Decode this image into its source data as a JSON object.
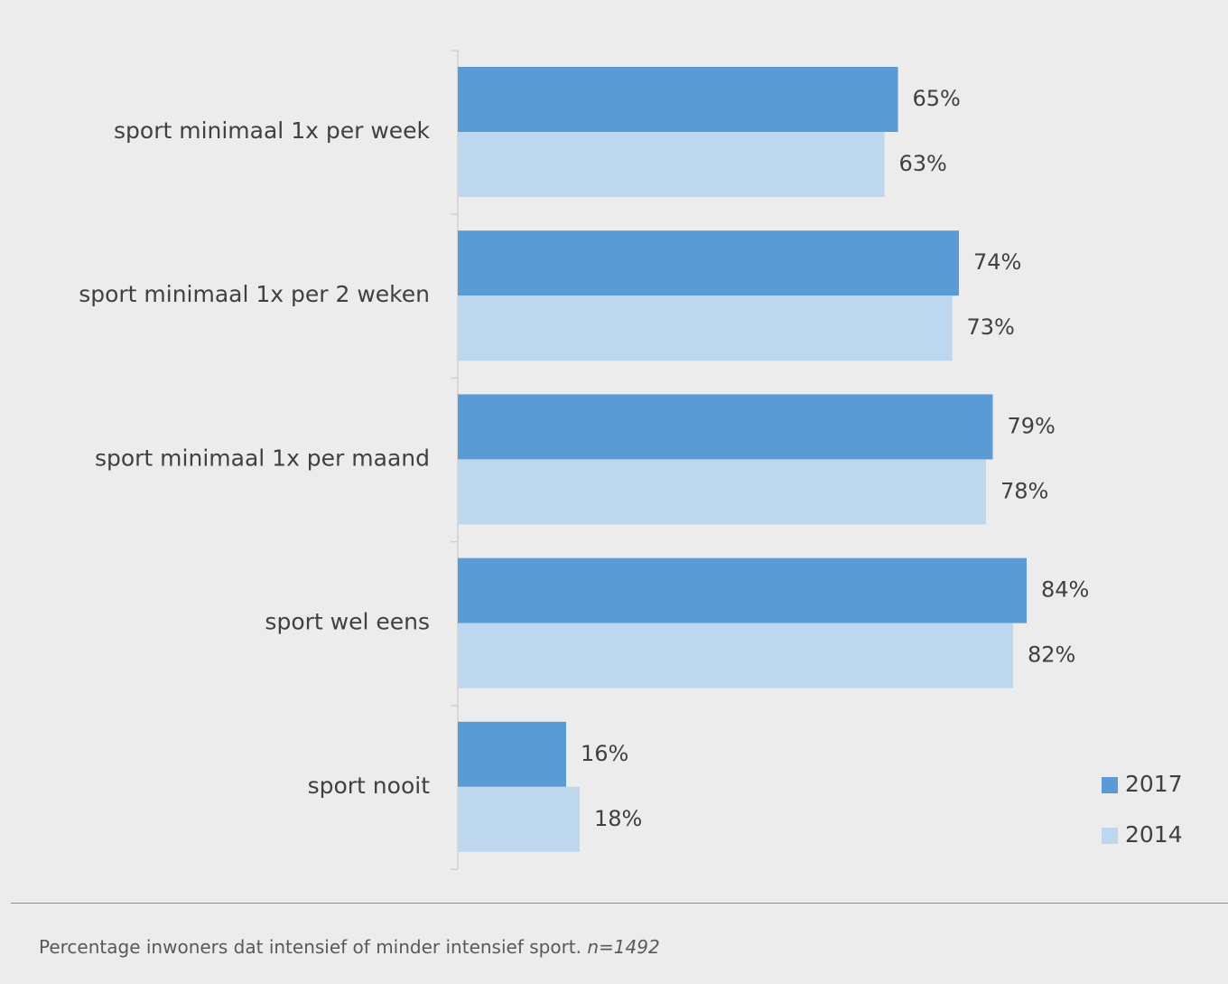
{
  "chart_data": {
    "type": "bar",
    "orientation": "horizontal",
    "categories": [
      "sport minimaal 1x per week",
      "sport minimaal 1x per 2 weken",
      "sport minimaal 1x per maand",
      "sport wel eens",
      "sport nooit"
    ],
    "series": [
      {
        "name": "2017",
        "values": [
          65,
          74,
          79,
          84,
          16
        ],
        "labels": [
          "65%",
          "74%",
          "79%",
          "84%",
          "16%"
        ],
        "color": "#5b9bd5"
      },
      {
        "name": "2014",
        "values": [
          63,
          73,
          78,
          82,
          18
        ],
        "labels": [
          "63%",
          "73%",
          "78%",
          "82%",
          "18%"
        ],
        "color": "#bdd7ee"
      }
    ],
    "value_unit": "%",
    "xlim": [
      0,
      100
    ],
    "grid": false,
    "legend": "bottom-right"
  },
  "caption": {
    "text": "Percentage inwoners dat intensief of minder intensief sport.",
    "note": "n=1492"
  }
}
